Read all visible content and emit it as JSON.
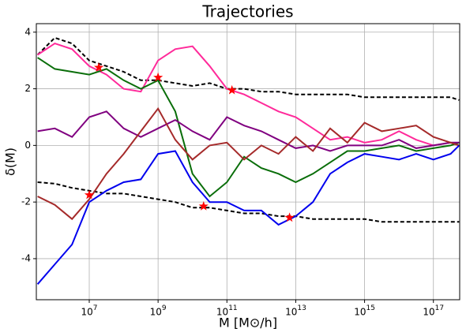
{
  "chart_data": {
    "type": "line",
    "title": "Trajectories",
    "xlabel": "M [M⊙/h]",
    "ylabel": "δ(M)",
    "xscale": "log",
    "grid": true,
    "xlim": [
      290000.0,
      5.8e+17
    ],
    "ylim": [
      -5.45,
      4.3
    ],
    "xticks": [
      {
        "value": 10000000.0,
        "label": "10^7"
      },
      {
        "value": 1000000000.0,
        "label": "10^9"
      },
      {
        "value": 100000000000.0,
        "label": "10^11"
      },
      {
        "value": 10000000000000.0,
        "label": "10^13"
      },
      {
        "value": 1000000000000000.0,
        "label": "10^15"
      },
      {
        "value": 1e+17,
        "label": "10^17"
      }
    ],
    "yticks": [
      -4,
      -2,
      0,
      2,
      4
    ],
    "x": [
      316000.0,
      1000000.0,
      3160000.0,
      10000000.0,
      31600000.0,
      100000000.0,
      316000000.0,
      1000000000.0,
      3160000000.0,
      10000000000.0,
      31600000000.0,
      100000000000.0,
      316000000000.0,
      1000000000000.0,
      3160000000000.0,
      10000000000000.0,
      31600000000000.0,
      100000000000000.0,
      316000000000000.0,
      1000000000000000.0,
      3160000000000000.0,
      1e+16,
      3.16e+16,
      1e+17,
      3.16e+17,
      5.6e+17
    ],
    "series": [
      {
        "color": "#000000",
        "dashed": true,
        "values": [
          3.2,
          3.8,
          3.6,
          3.0,
          2.8,
          2.6,
          2.3,
          2.3,
          2.2,
          2.1,
          2.2,
          2.0,
          2.0,
          1.9,
          1.9,
          1.8,
          1.8,
          1.8,
          1.8,
          1.7,
          1.7,
          1.7,
          1.7,
          1.7,
          1.7,
          1.6
        ]
      },
      {
        "color": "#000000",
        "dashed": true,
        "values": [
          -1.3,
          -1.35,
          -1.5,
          -1.6,
          -1.7,
          -1.7,
          -1.8,
          -1.9,
          -2.0,
          -2.2,
          -2.2,
          -2.3,
          -2.4,
          -2.4,
          -2.5,
          -2.5,
          -2.6,
          -2.6,
          -2.6,
          -2.6,
          -2.7,
          -2.7,
          -2.7,
          -2.7,
          -2.7,
          -2.7
        ]
      },
      {
        "color": "#ff2a9a",
        "dashed": false,
        "values": [
          3.2,
          3.6,
          3.4,
          2.8,
          2.5,
          2.0,
          1.9,
          3.0,
          3.4,
          3.5,
          2.8,
          2.0,
          1.8,
          1.5,
          1.2,
          1.0,
          0.6,
          0.2,
          0.3,
          0.1,
          0.2,
          0.5,
          0.2,
          0.0,
          0.1,
          0.0
        ]
      },
      {
        "color": "#0a6e0a",
        "dashed": false,
        "values": [
          3.1,
          2.7,
          2.6,
          2.5,
          2.7,
          2.3,
          2.0,
          2.3,
          1.2,
          -1.0,
          -1.8,
          -1.3,
          -0.4,
          -0.8,
          -1.0,
          -1.3,
          -1.0,
          -0.6,
          -0.2,
          -0.2,
          -0.1,
          0.0,
          -0.2,
          -0.1,
          0.0,
          0.1
        ]
      },
      {
        "color": "#800080",
        "dashed": false,
        "values": [
          0.5,
          0.6,
          0.3,
          1.0,
          1.2,
          0.6,
          0.3,
          0.6,
          0.9,
          0.5,
          0.2,
          1.0,
          0.7,
          0.5,
          0.2,
          -0.1,
          0.0,
          -0.2,
          0.0,
          0.0,
          0.0,
          0.2,
          -0.1,
          0.0,
          0.1,
          0.1
        ]
      },
      {
        "color": "#a52a2a",
        "dashed": false,
        "values": [
          -1.8,
          -2.1,
          -2.6,
          -1.9,
          -1.0,
          -0.3,
          0.5,
          1.3,
          0.2,
          -0.5,
          0.0,
          0.1,
          -0.5,
          0.0,
          -0.3,
          0.3,
          -0.2,
          0.6,
          0.1,
          0.8,
          0.5,
          0.6,
          0.7,
          0.3,
          0.1,
          0.0
        ]
      },
      {
        "color": "#0000ee",
        "dashed": false,
        "values": [
          -4.9,
          -4.2,
          -3.5,
          -2.0,
          -1.6,
          -1.3,
          -1.2,
          -0.3,
          -0.2,
          -1.3,
          -2.0,
          -2.0,
          -2.3,
          -2.3,
          -2.8,
          -2.5,
          -2.0,
          -1.0,
          -0.6,
          -0.3,
          -0.4,
          -0.5,
          -0.3,
          -0.5,
          -0.3,
          0.0
        ]
      }
    ],
    "stars": {
      "color": "#ff0000",
      "x": [
        19000000.0,
        10000000.0,
        1000000000.0,
        21000000000.0,
        140000000000.0,
        6600000000000.0
      ],
      "y": [
        2.75,
        -1.75,
        2.4,
        -2.15,
        1.95,
        -2.55
      ]
    }
  }
}
